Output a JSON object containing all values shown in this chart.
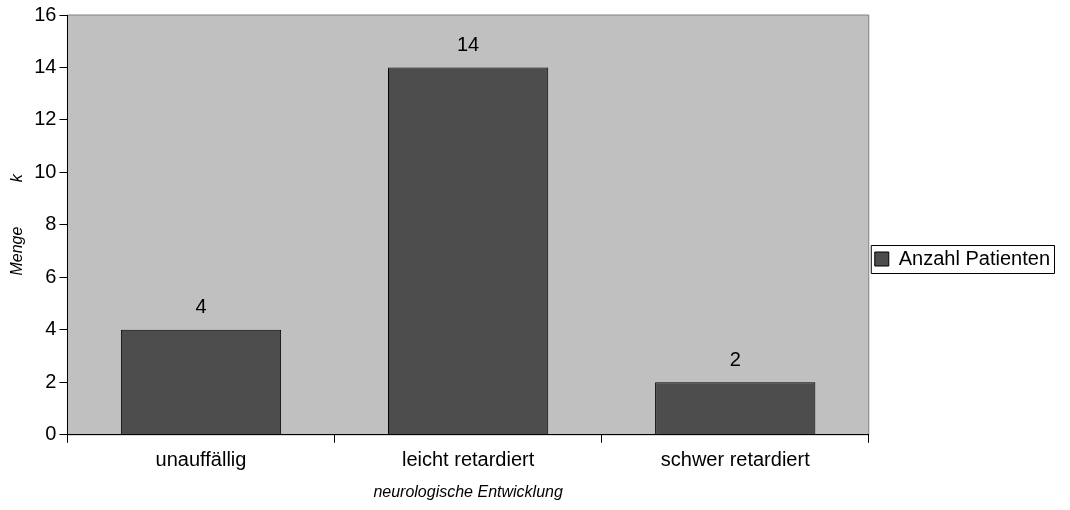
{
  "chart_data": {
    "type": "bar",
    "xlabel": "neurologische Entwicklung",
    "ylabel": "Menge          k",
    "categories": [
      "unauffällig",
      "leicht retardiert",
      "schwer retardiert"
    ],
    "series": [
      {
        "name": "Anzahl Patienten",
        "color": "#4d4d4d",
        "values": [
          4,
          14,
          2
        ]
      }
    ],
    "ylim": [
      0,
      16
    ],
    "yticks": [
      0,
      2,
      4,
      6,
      8,
      10,
      12,
      14,
      16
    ],
    "grid": false,
    "legend": "right",
    "data_labels": true
  }
}
